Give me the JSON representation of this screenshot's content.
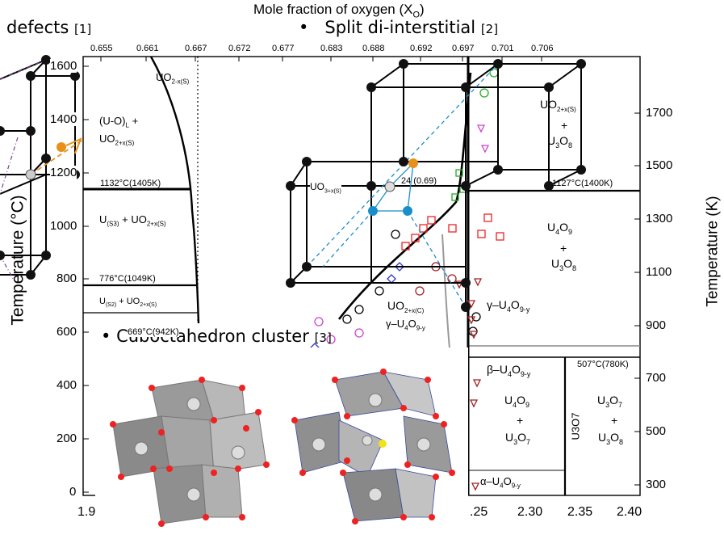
{
  "header": {
    "top_axis_title": "Mole fraction of oxygen (X",
    "top_axis_sub": "O",
    "top_axis_close": ")",
    "bullet_left": "defects",
    "bullet_left_cite": "[1]",
    "bullet_right": "Split di-interstitial",
    "bullet_right_cite": "[2]",
    "bullet_bottom": "Cuboctahedron cluster",
    "bullet_bottom_cite": "[3]",
    "bullet_glyph": "•"
  },
  "axes": {
    "top_ticks": [
      "0.655",
      "0.661",
      "0.667",
      "0.672",
      "0.677",
      "0.683",
      "0.688",
      "0.692",
      "0.697",
      "0.701",
      "0.706"
    ],
    "left_ticks": [
      "1600",
      "1400",
      "1200",
      "1000",
      "800",
      "600",
      "400",
      "200",
      "0"
    ],
    "right_ticks": [
      "1700",
      "1500",
      "1300",
      "1100",
      "900",
      "700",
      "500",
      "300"
    ],
    "bottom_ticks": [
      "1.9",
      ".25",
      "2.30",
      "2.35",
      "2.40"
    ],
    "left_title": "Temperature (°C)",
    "right_title": "Temperature (K)"
  },
  "phase_labels": {
    "uo2x": "UO",
    "uo2x_sub": "2-x(S)",
    "uol": "(U-O)",
    "uol_sub": "L",
    "uol_plus": "+",
    "uo2px": "UO",
    "uo2px_sub": "2+x(S)",
    "t1132": "1132°C(1405K)",
    "us3": "U",
    "us3_sub": "(S3)",
    "us3_rest": " + UO",
    "us3_rest_sub": "2+x(S)",
    "t776": "776°C(1049K)",
    "us2": "U",
    "us2_sub": "(S2)",
    "us2_rest": " + UO",
    "us2_rest_sub": "2+x(S)",
    "t669": "669°C(942K)",
    "uo2x_mid": "UO",
    "uo2x_mid_sub": "2+x(S)",
    "plus1": "+",
    "u3o8_a": "U",
    "u3o8_a_sub1": "3",
    "u3o8_a_o": "O",
    "u3o8_a_sub2": "8",
    "t1127": "1127°C(1400K)",
    "u4o9_a": "U",
    "u4o9_a_sub1": "4",
    "u4o9_a_o": "O",
    "u4o9_a_sub2": "9",
    "plus2": "+",
    "u3o8_b": "U",
    "u3o8_b_sub1": "3",
    "u3o8_b_o": "O",
    "u3o8_b_sub2": "8",
    "gamma": "γ–U",
    "gamma_sub1": "4",
    "gamma_o": "O",
    "gamma_sub2": "9-y",
    "triple": "24 (0.69)",
    "uo2x_low": "UO",
    "uo2x_low_sub": "2+x(C)",
    "gamma2": "γ–U",
    "gamma2_sub1": "4",
    "gamma2_o": "O",
    "gamma2_sub2": "9-y",
    "uo3": "UO",
    "uo3_sub": "3+x(S)",
    "beta": "β–U",
    "beta_sub1": "4",
    "beta_o": "O",
    "beta_sub2": "9-y",
    "t507": "507°C(780K)",
    "u4o9_c": "U",
    "u4o9_c_sub1": "4",
    "u4o9_c_o": "O",
    "u4o9_c_sub2": "9",
    "plus3": "+",
    "u3o7_a": "U",
    "u3o7_a_sub1": "3",
    "u3o7_a_o": "O",
    "u3o7_a_sub2": "7",
    "u3o7_v": "U3O7",
    "u3o7_b": "U",
    "u3o7_b_sub1": "3",
    "u3o7_b_o": "O",
    "u3o7_b_sub2": "7",
    "plus4": "+",
    "u3o8_c": "U",
    "u3o8_c_sub1": "3",
    "u3o8_c_o": "O",
    "u3o8_c_sub2": "8",
    "alpha": "α–U",
    "alpha_sub1": "4",
    "alpha_o": "O",
    "alpha_sub2": "9-y"
  },
  "colors": {
    "uranium": "#cfcfcf",
    "oxygen": "#d0202a",
    "interstitial": "#e8901a",
    "split": "#1a8ec8",
    "cluster_face": "#8a8a8a"
  }
}
